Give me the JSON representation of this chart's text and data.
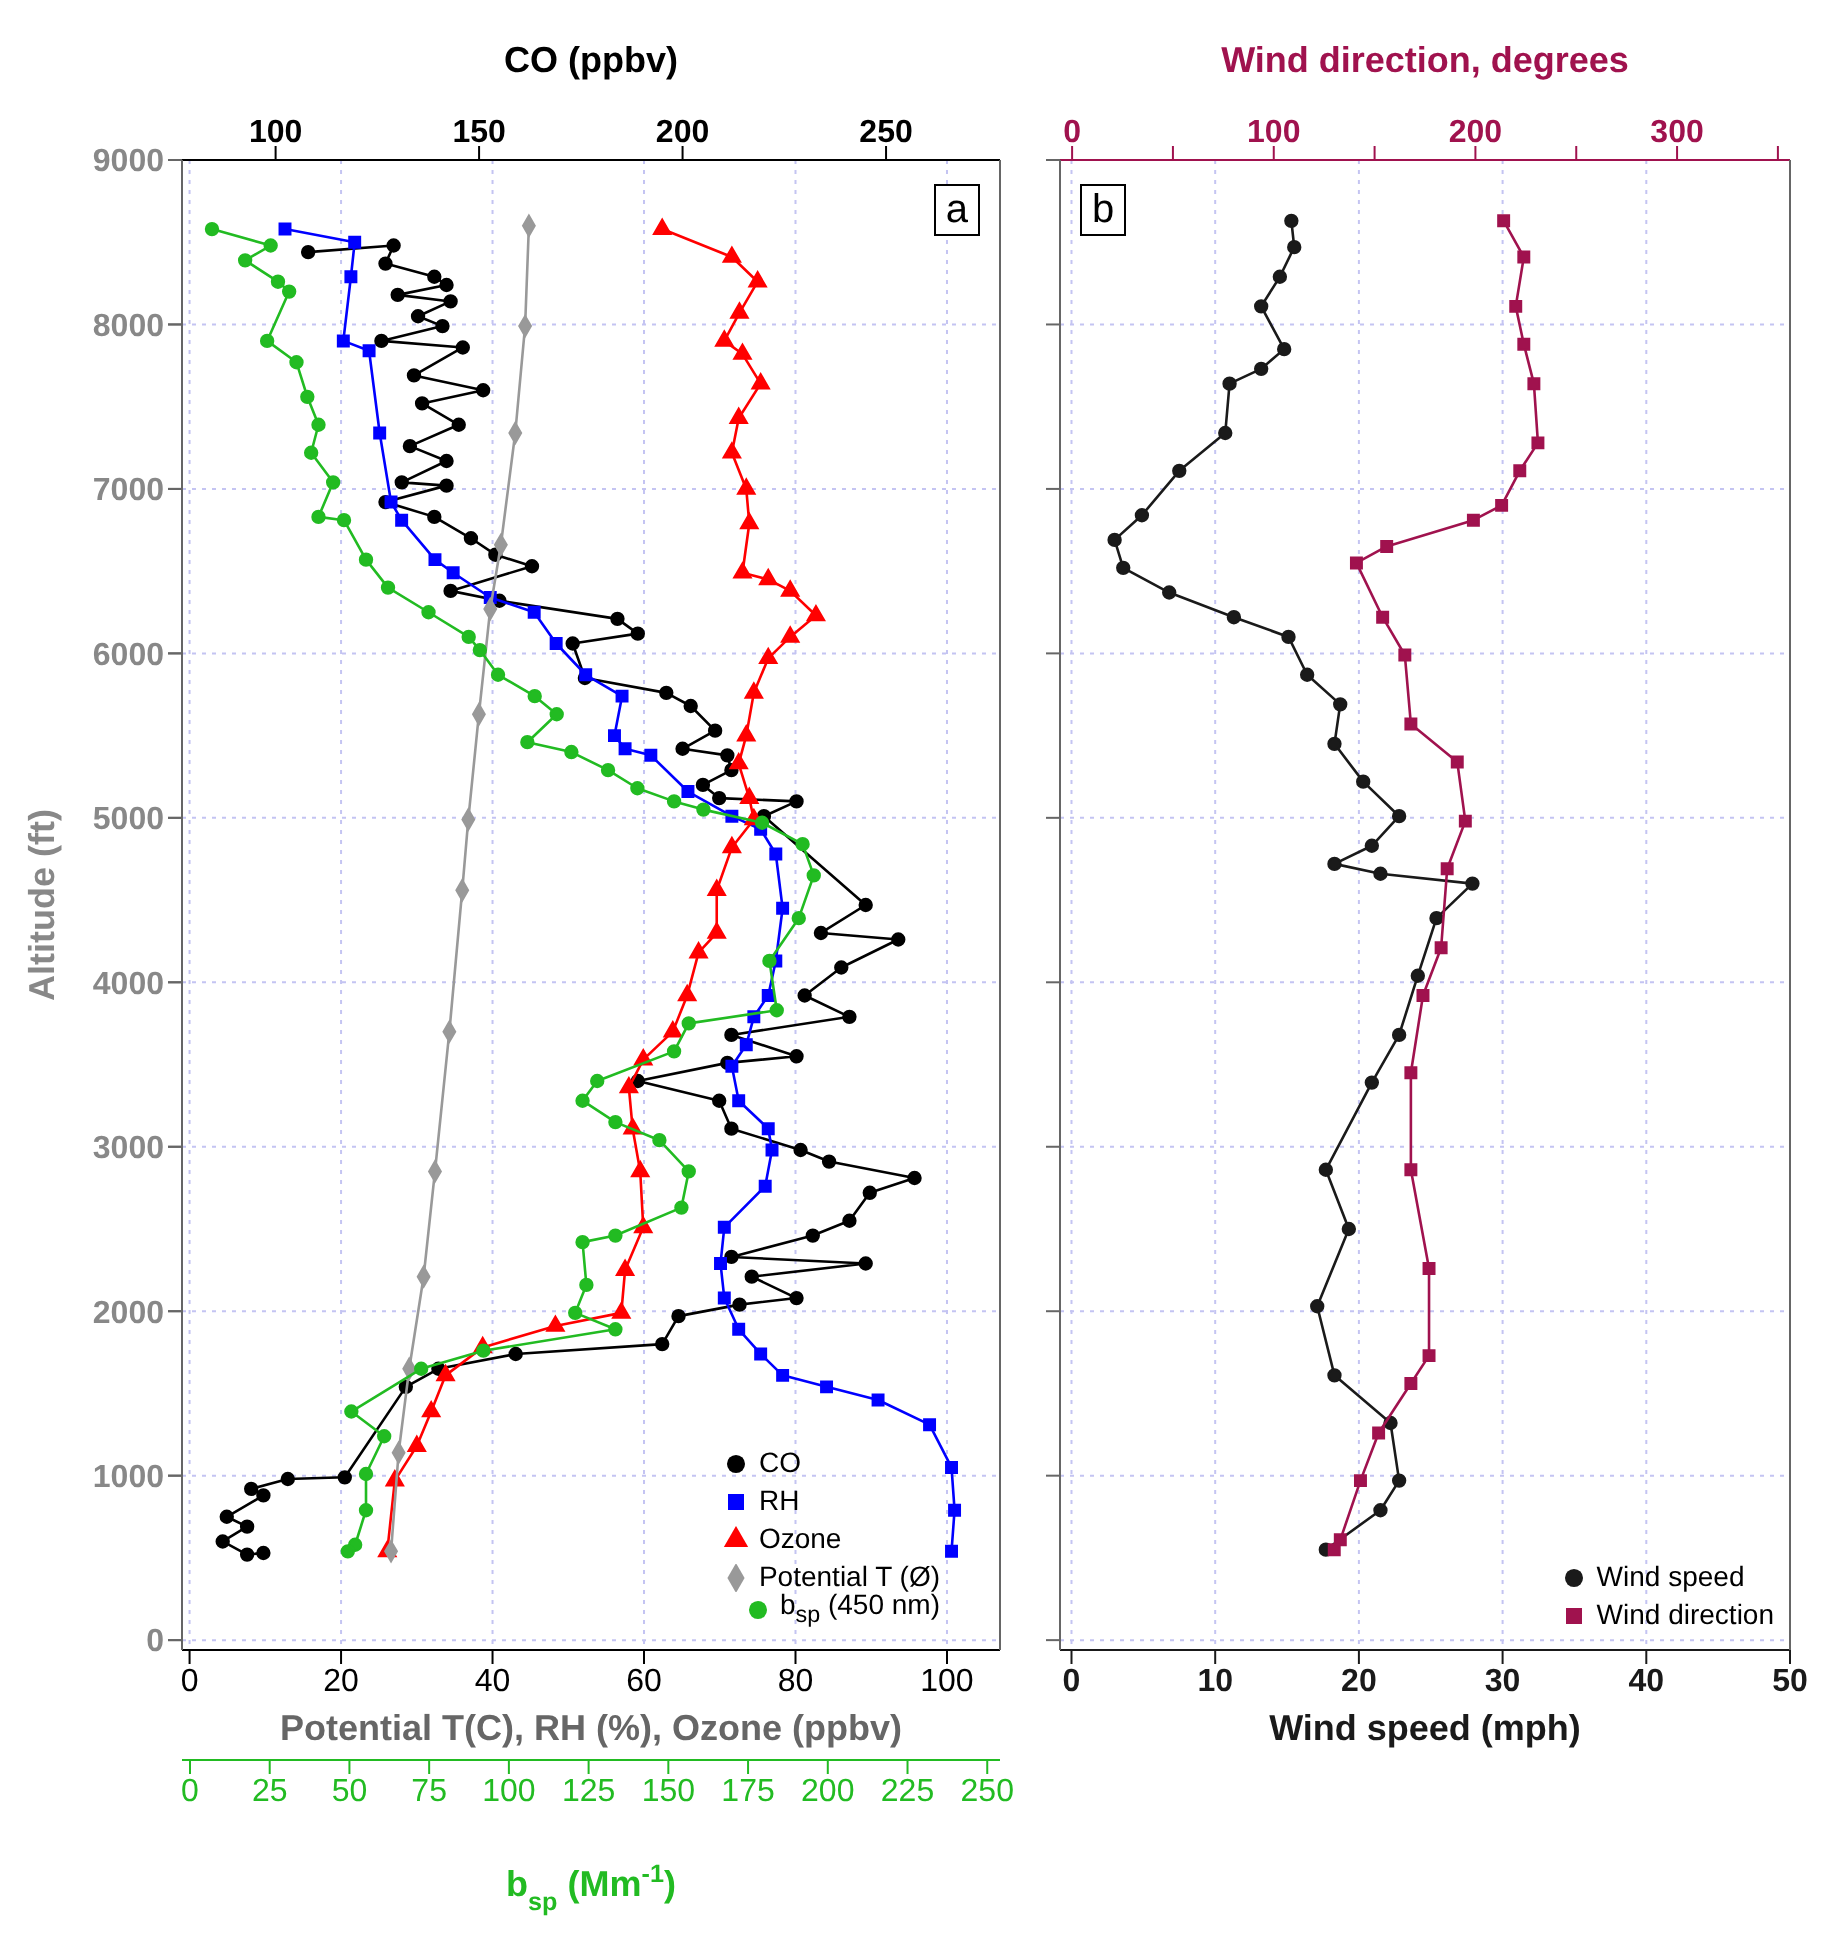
{
  "chart_data": [
    {
      "type": "line",
      "annotations": [
        "a"
      ],
      "xlabel": "Potential T(C), RH (%), Ozone (ppbv)",
      "x2label": "CO (ppbv)",
      "ylabel": "Altitude (ft)",
      "xlim": [
        -1,
        107
      ],
      "xticks": [
        0,
        20,
        40,
        60,
        80,
        100
      ],
      "x2lim": [
        77,
        278
      ],
      "x2ticks": [
        100,
        150,
        200,
        250
      ],
      "ylim": [
        -60,
        9000
      ],
      "yticks": [
        0,
        1000,
        2000,
        3000,
        4000,
        5000,
        6000,
        7000,
        8000,
        9000
      ],
      "grid": true,
      "legend": "bottom right",
      "series": [
        {
          "name": "CO",
          "color": "#000000",
          "marker": "circle",
          "axis": "x2",
          "x": [
            108,
            129,
            127,
            139,
            142,
            130,
            143,
            135,
            141,
            126,
            146,
            134,
            151,
            136,
            145,
            133,
            142,
            131,
            142,
            127,
            139,
            148,
            154,
            163,
            143,
            155,
            184,
            189,
            173,
            176,
            196,
            202,
            208,
            200,
            211,
            212,
            205,
            209,
            228,
            220,
            245,
            234,
            253,
            239,
            230,
            241,
            212,
            228,
            211,
            189,
            209,
            212,
            229,
            236,
            257,
            246,
            241,
            232,
            212,
            245,
            217,
            228,
            214,
            199,
            195,
            159,
            140,
            132,
            117,
            103,
            94,
            97,
            88,
            93,
            87,
            93,
            97
          ],
          "values": [
            8440,
            8480,
            8370,
            8290,
            8240,
            8180,
            8140,
            8050,
            7990,
            7900,
            7860,
            7690,
            7600,
            7520,
            7390,
            7260,
            7170,
            7040,
            7020,
            6920,
            6830,
            6700,
            6600,
            6530,
            6380,
            6320,
            6210,
            6120,
            6060,
            5850,
            5760,
            5680,
            5530,
            5420,
            5380,
            5290,
            5200,
            5120,
            5100,
            5010,
            4470,
            4300,
            4260,
            4090,
            3920,
            3790,
            3680,
            3550,
            3510,
            3400,
            3280,
            3110,
            2980,
            2910,
            2810,
            2720,
            2550,
            2460,
            2330,
            2290,
            2210,
            2080,
            2040,
            1970,
            1800,
            1740,
            1650,
            1540,
            990,
            980,
            920,
            880,
            750,
            690,
            600,
            520,
            530
          ]
        },
        {
          "name": "RH",
          "color": "#0000ff",
          "marker": "square",
          "x": [
            12.6,
            21.8,
            21.3,
            20.3,
            23.7,
            25.1,
            26.6,
            28,
            32.4,
            34.8,
            39.7,
            45.5,
            48.4,
            52.3,
            57.1,
            56.1,
            57.5,
            60.9,
            65.8,
            71.6,
            75.4,
            77.4,
            78.3,
            77.4,
            76.4,
            74.5,
            73.5,
            71.6,
            72.5,
            76.4,
            76.9,
            76,
            70.6,
            70.1,
            70.6,
            72.5,
            75.4,
            78.3,
            84.1,
            90.9,
            97.7,
            100.6,
            101,
            100.6
          ],
          "values": [
            8580,
            8500,
            8290,
            7900,
            7840,
            7340,
            6920,
            6810,
            6570,
            6490,
            6340,
            6250,
            6060,
            5870,
            5740,
            5500,
            5420,
            5380,
            5160,
            5010,
            4930,
            4780,
            4450,
            4130,
            3920,
            3790,
            3620,
            3490,
            3280,
            3110,
            2980,
            2760,
            2510,
            2290,
            2080,
            1890,
            1740,
            1610,
            1540,
            1460,
            1310,
            1050,
            790,
            540
          ]
        },
        {
          "name": "Ozone",
          "color": "#ff0000",
          "marker": "triangle",
          "x": [
            62.4,
            71.6,
            75,
            72.6,
            70.6,
            73,
            75.4,
            72.5,
            71.6,
            73.5,
            73.9,
            73,
            76.4,
            79.3,
            82.7,
            79.3,
            76.4,
            74.5,
            73.5,
            72.5,
            73.9,
            74.5,
            71.6,
            69.6,
            69.6,
            67.2,
            65.7,
            63.8,
            59.9,
            58,
            58.5,
            59.5,
            59.9,
            57.5,
            57,
            48.3,
            38.7,
            33.8,
            31.9,
            30,
            27.1,
            26.1
          ],
          "values": [
            8580,
            8410,
            8260,
            8070,
            7900,
            7820,
            7640,
            7430,
            7220,
            7000,
            6790,
            6490,
            6450,
            6380,
            6230,
            6100,
            5970,
            5760,
            5500,
            5330,
            5120,
            4990,
            4820,
            4560,
            4300,
            4180,
            3920,
            3700,
            3530,
            3360,
            3110,
            2850,
            2510,
            2250,
            1990,
            1910,
            1780,
            1610,
            1390,
            1180,
            970,
            540
          ]
        },
        {
          "name": "Potential T (Ø)",
          "color": "#999999",
          "marker": "diamond",
          "x": [
            44.8,
            44.3,
            43,
            41.1,
            39.7,
            38.2,
            36.8,
            36,
            34.3,
            32.4,
            30.9,
            29,
            27.6,
            26.6
          ],
          "values": [
            8600,
            7990,
            7340,
            6660,
            6270,
            5630,
            4990,
            4560,
            3700,
            2850,
            2210,
            1650,
            1140,
            540
          ]
        }
      ]
    },
    {
      "type": "line",
      "xlabel": "b$_{sp}$ (Mm$^{-1}$)",
      "xlim": [
        -2.5,
        254
      ],
      "xticks": [
        0,
        25,
        50,
        75,
        100,
        125,
        150,
        175,
        200,
        225,
        250
      ],
      "ylim": [
        -60,
        9000
      ],
      "yticks": [
        0,
        1000,
        2000,
        3000,
        4000,
        5000,
        6000,
        7000,
        8000,
        9000
      ],
      "tick_labels": "x",
      "legend": "bottom right",
      "series": [
        {
          "name": "b$_{sp}$ (450 nm)",
          "color": "#22bb22",
          "marker": "circle",
          "x": [
            6.9,
            25.3,
            17.3,
            27.6,
            31.1,
            24.2,
            33.4,
            36.8,
            40.3,
            38,
            44.9,
            40.3,
            48.3,
            55.2,
            62.1,
            74.8,
            87.4,
            90.9,
            96.6,
            108.1,
            115,
            105.8,
            119.6,
            131.1,
            140.3,
            151.8,
            161,
            179.4,
            192.1,
            195.6,
            190.9,
            181.7,
            184,
            156.4,
            151.8,
            127.7,
            123.1,
            133.4,
            147.2,
            156.4,
            154.1,
            133.4,
            123.1,
            124.3,
            120.8,
            133.4,
            92,
            72.5,
            50.6,
            60.9,
            55.2,
            55.2,
            51.8,
            49.5
          ],
          "values": [
            8580,
            8480,
            8390,
            8260,
            8200,
            7900,
            7770,
            7560,
            7390,
            7220,
            7040,
            6830,
            6810,
            6570,
            6400,
            6250,
            6100,
            6020,
            5870,
            5740,
            5630,
            5460,
            5400,
            5290,
            5180,
            5100,
            5050,
            4970,
            4840,
            4650,
            4390,
            4130,
            3830,
            3750,
            3580,
            3400,
            3280,
            3150,
            3040,
            2850,
            2630,
            2460,
            2420,
            2160,
            1990,
            1890,
            1760,
            1650,
            1390,
            1240,
            1010,
            790,
            580,
            540
          ]
        }
      ]
    },
    {
      "type": "line",
      "annotations": [
        "b"
      ],
      "xlabel": "Wind speed (mph)",
      "x2label": "Wind direction, degrees",
      "xlim": [
        -0.8,
        50
      ],
      "xticks": [
        0,
        10,
        20,
        30,
        40,
        50
      ],
      "x2lim": [
        -6,
        356
      ],
      "x2ticks": [
        0,
        {
          "value": 50,
          "label": null
        },
        100,
        {
          "value": 150,
          "label": null
        },
        200,
        {
          "value": 250,
          "label": null
        },
        300,
        {
          "value": 350,
          "label": null
        }
      ],
      "ylim": [
        -60,
        9000
      ],
      "yticks": [
        0,
        1000,
        2000,
        3000,
        4000,
        5000,
        6000,
        7000,
        8000,
        9000
      ],
      "tick_labels": "x",
      "grid": true,
      "legend": "bottom right",
      "series": [
        {
          "name": "Wind speed",
          "color": "#1a1a1a",
          "marker": "circle",
          "x": [
            15.3,
            15.5,
            14.5,
            13.2,
            14.8,
            13.2,
            11,
            10.7,
            7.5,
            4.9,
            3,
            3.6,
            6.8,
            11.3,
            15.1,
            16.4,
            18.7,
            18.3,
            20.3,
            22.8,
            20.9,
            18.3,
            21.5,
            27.9,
            25.4,
            24.1,
            22.8,
            20.9,
            17.7,
            19.3,
            17.1,
            18.3,
            22.2,
            22.8,
            21.5,
            17.7
          ],
          "values": [
            8630,
            8470,
            8290,
            8110,
            7850,
            7730,
            7640,
            7340,
            7110,
            6840,
            6690,
            6520,
            6370,
            6220,
            6100,
            5870,
            5690,
            5450,
            5220,
            5010,
            4830,
            4720,
            4660,
            4600,
            4390,
            4040,
            3680,
            3390,
            2860,
            2500,
            2030,
            1610,
            1320,
            970,
            790,
            550
          ]
        },
        {
          "name": "Wind direction",
          "color": "#a0124e",
          "marker": "square",
          "axis": "x2",
          "x": [
            214,
            224,
            220,
            224,
            229,
            231,
            222,
            213,
            199,
            156,
            141,
            154,
            165,
            168,
            191,
            195,
            186,
            183,
            174,
            168,
            168,
            177,
            177,
            168,
            152,
            143,
            133,
            130
          ],
          "values": [
            8630,
            8410,
            8110,
            7880,
            7640,
            7280,
            7110,
            6900,
            6810,
            6650,
            6550,
            6220,
            5990,
            5570,
            5340,
            4980,
            4690,
            4210,
            3920,
            3450,
            2860,
            2260,
            1730,
            1560,
            1260,
            970,
            610,
            550
          ]
        }
      ]
    }
  ]
}
